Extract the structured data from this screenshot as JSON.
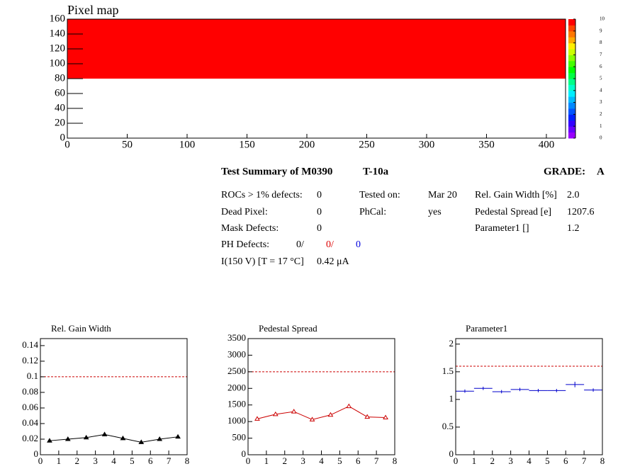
{
  "chart_data": [
    {
      "type": "heatmap",
      "title": "Pixel map",
      "xlim": [
        0,
        416
      ],
      "xticks": [
        0,
        50,
        100,
        150,
        200,
        250,
        300,
        350,
        400
      ],
      "ylim": [
        0,
        160
      ],
      "yticks": [
        0,
        20,
        40,
        60,
        80,
        100,
        120,
        140,
        160
      ],
      "zlim": [
        0,
        10
      ],
      "zticks": [
        0,
        1,
        2,
        3,
        4,
        5,
        6,
        7,
        8,
        9,
        10
      ],
      "palette": [
        "#9900ff",
        "#6600ff",
        "#3300ff",
        "#0022ff",
        "#0055ff",
        "#0088ff",
        "#00bbff",
        "#00eeff",
        "#00ffcc",
        "#00ff88",
        "#00ff44",
        "#00ff00",
        "#44ff00",
        "#88ff00",
        "#ccff00",
        "#ffee00",
        "#ffaa00",
        "#ff7700",
        "#ff4400",
        "#ff0000"
      ],
      "regions": [
        {
          "xrange": [
            0,
            416
          ],
          "yrange": [
            80,
            160
          ],
          "value": 10
        }
      ]
    },
    {
      "type": "line",
      "title": "Rel. Gain Width",
      "xlim": [
        0,
        8
      ],
      "xticks": [
        0,
        1,
        2,
        3,
        4,
        5,
        6,
        7,
        8
      ],
      "ylim": [
        0,
        0.149
      ],
      "yticks": [
        0,
        0.02,
        0.04,
        0.06,
        0.08,
        0.1,
        0.12,
        0.14
      ],
      "x": [
        0.5,
        1.5,
        2.5,
        3.5,
        4.5,
        5.5,
        6.5,
        7.5
      ],
      "values": [
        0.018,
        0.02,
        0.022,
        0.026,
        0.021,
        0.016,
        0.02,
        0.023
      ],
      "color": "#000000",
      "marker": "filled",
      "ref_value": 0.1,
      "ref_color": "#cc0000"
    },
    {
      "type": "line",
      "title": "Pedestal Spread",
      "xlim": [
        0,
        8
      ],
      "xticks": [
        0,
        1,
        2,
        3,
        4,
        5,
        6,
        7,
        8
      ],
      "ylim": [
        0,
        3500
      ],
      "yticks": [
        0,
        500,
        1000,
        1500,
        2000,
        2500,
        3000,
        3500
      ],
      "x": [
        0.5,
        1.5,
        2.5,
        3.5,
        4.5,
        5.5,
        6.5,
        7.5
      ],
      "values": [
        1080,
        1220,
        1300,
        1060,
        1200,
        1460,
        1140,
        1120
      ],
      "color": "#cc0000",
      "marker": "open",
      "ref_value": 2500,
      "ref_color": "#cc0000"
    },
    {
      "type": "errorbar",
      "title": "Parameter1",
      "xlim": [
        0,
        8
      ],
      "xticks": [
        0,
        1,
        2,
        3,
        4,
        5,
        6,
        7,
        8
      ],
      "ylim": [
        0,
        2.1
      ],
      "yticks": [
        0,
        0.5,
        1,
        1.5,
        2
      ],
      "x": [
        0.5,
        1.5,
        2.5,
        3.5,
        4.5,
        5.5,
        6.5,
        7.5
      ],
      "x_errors": [
        0.5,
        0.5,
        0.5,
        0.5,
        0.5,
        0.5,
        0.5,
        0.5
      ],
      "values": [
        1.15,
        1.2,
        1.14,
        1.18,
        1.16,
        1.16,
        1.27,
        1.17
      ],
      "errors": [
        0.03,
        0.03,
        0.03,
        0.03,
        0.03,
        0.03,
        0.05,
        0.03
      ],
      "color": "#0000cc",
      "ref_value": 1.6,
      "ref_color": "#cc0000"
    }
  ],
  "summary": {
    "title": "Test Summary of M0390",
    "test": "T-10a",
    "grade_label": "GRADE:",
    "grade": "A",
    "rocs_label": "ROCs > 1% defects:",
    "rocs": "0",
    "dead_label": "Dead Pixel:",
    "dead": "0",
    "mask_label": "Mask Defects:",
    "mask": "0",
    "ph_label": "PH Defects:",
    "ph": [
      "0/",
      "0/",
      "0"
    ],
    "current_label": "I(150 V) [T = 17 °C]",
    "current": "0.42 μA",
    "tested_label": "Tested on:",
    "tested": "Mar 20",
    "phcal_label": "PhCal:",
    "phcal": "yes",
    "gain_label": "Rel. Gain Width [%]",
    "gain": "2.0",
    "ped_label": "Pedestal Spread [e]",
    "ped": "1207.6",
    "par_label": "Parameter1 []",
    "par": "1.2"
  }
}
